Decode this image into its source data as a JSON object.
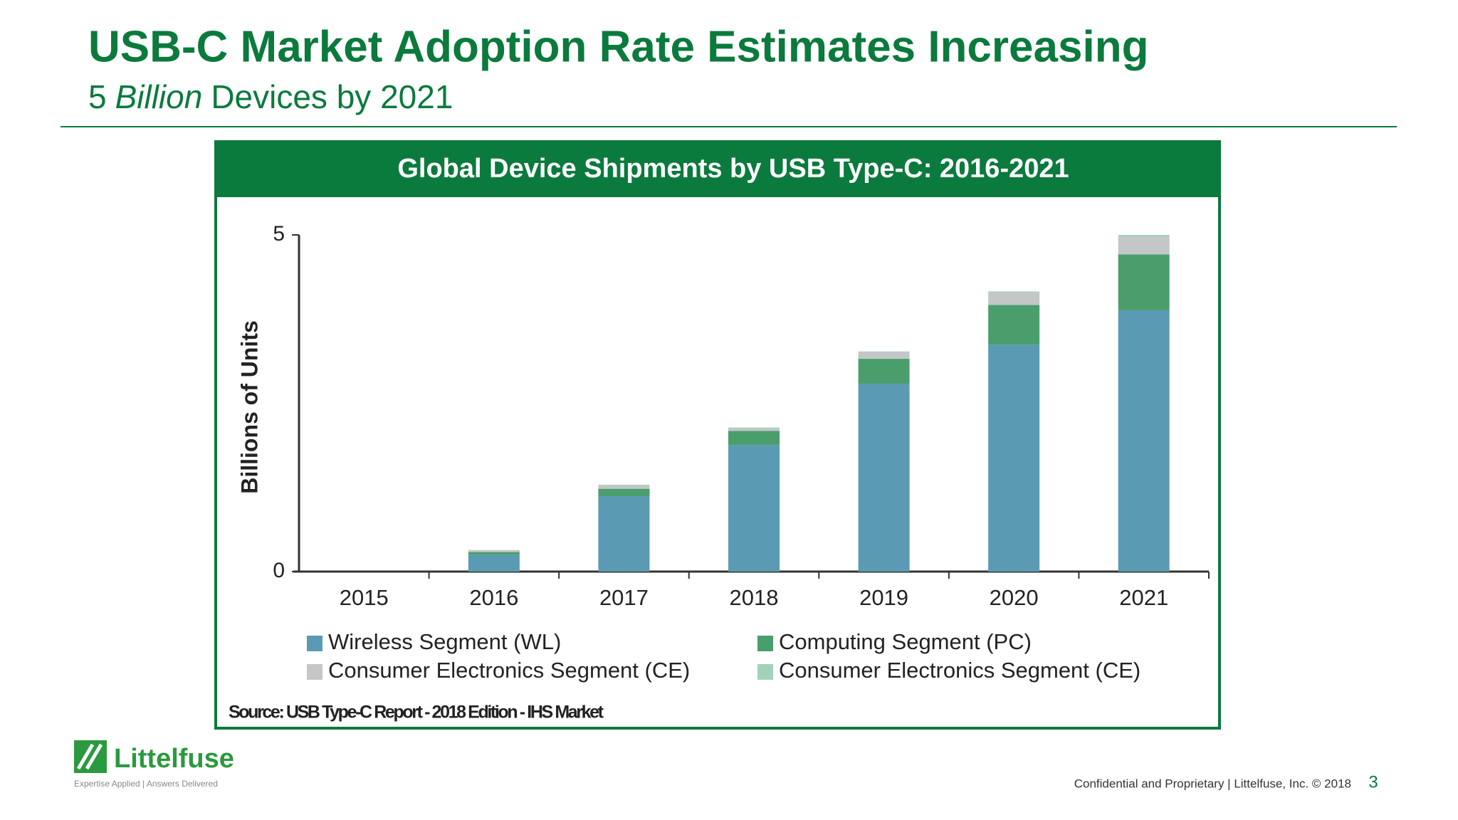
{
  "header": {
    "title": "USB-C Market Adoption Rate Estimates Increasing",
    "subtitle": [
      "5",
      "Billion",
      "Devices by 2021"
    ]
  },
  "chart_data": {
    "type": "stacked-bar",
    "title": "Global Device Shipments by USB Type-C: 2016-2021",
    "y_label": "Billions of Units",
    "categories": [
      "2015",
      "2016",
      "2017",
      "2018",
      "2019",
      "2020",
      "2021"
    ],
    "series": [
      {
        "name": "Wireless Segment (WL)",
        "color": "#5a9ab2",
        "values": [
          0,
          0.25,
          1.12,
          1.88,
          2.79,
          3.37,
          3.88
        ]
      },
      {
        "name": "Computing Segment (PC)",
        "color": "#4a9e6c",
        "values": [
          0,
          0.04,
          0.11,
          0.21,
          0.37,
          0.59,
          0.83
        ]
      },
      {
        "name": "Consumer Electronics Segment (CE)",
        "color": "#c4c6c8",
        "values": [
          0,
          0.03,
          0.05,
          0.04,
          0.1,
          0.18,
          0.26
        ]
      },
      {
        "name": "Consumer Electronics Segment (CE)",
        "color": "#a3d2bb",
        "values": [
          0,
          0,
          0.01,
          0.01,
          0.01,
          0.02,
          0.03
        ]
      }
    ],
    "ylim": [
      0,
      5
    ],
    "yticks": [
      0,
      5
    ],
    "source": "Source: USB Type-C Report - 2018 Edition - IHS Market"
  },
  "footer": {
    "logo": "Littelfuse",
    "tagline": "Expertise Applied | Answers Delivered",
    "note": "Confidential and Proprietary | Littelfuse, Inc. © 2018",
    "page_number": "3"
  }
}
